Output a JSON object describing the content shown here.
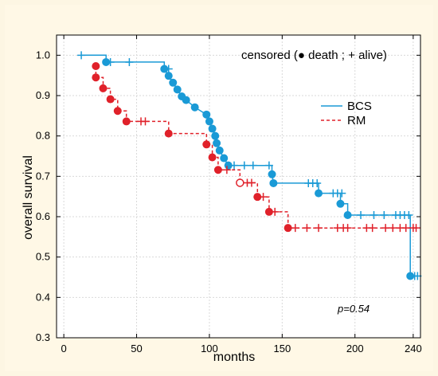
{
  "chart_data": {
    "type": "line",
    "title": "",
    "xlabel": "months",
    "ylabel": "overall survival",
    "xlim": [
      -5,
      245
    ],
    "ylim": [
      0.3,
      1.05
    ],
    "xticks": [
      0,
      50,
      100,
      150,
      200,
      240
    ],
    "yticks": [
      0.3,
      0.4,
      0.5,
      0.6,
      0.7,
      0.8,
      0.9,
      1.0
    ],
    "xtick_labels": [
      "0",
      "50",
      "100",
      "150",
      "200",
      "240"
    ],
    "ytick_labels": [
      "0.3",
      "0.4",
      "0.5",
      "0.6",
      "0.7",
      "0.8",
      "0.9",
      "1.0"
    ],
    "grid": true,
    "annotation_censored": "censored (● death ; + alive)",
    "annotation_p": "p=0.54",
    "legend_placement": "upper-right",
    "series": [
      {
        "name": "BCS",
        "color": "#1a9ad6",
        "line_style": "solid",
        "step": [
          [
            12,
            1.0
          ],
          [
            29,
            1.0
          ],
          [
            29,
            0.983
          ],
          [
            69,
            0.983
          ],
          [
            69,
            0.966
          ],
          [
            72,
            0.949
          ],
          [
            75,
            0.932
          ],
          [
            78,
            0.915
          ],
          [
            81,
            0.898
          ],
          [
            84,
            0.889
          ],
          [
            90,
            0.871
          ],
          [
            98,
            0.853
          ],
          [
            100,
            0.836
          ],
          [
            102,
            0.818
          ],
          [
            104,
            0.8
          ],
          [
            105,
            0.782
          ],
          [
            107,
            0.764
          ],
          [
            110,
            0.745
          ],
          [
            113,
            0.727
          ],
          [
            143,
            0.727
          ],
          [
            143,
            0.705
          ],
          [
            144,
            0.683
          ],
          [
            175,
            0.683
          ],
          [
            175,
            0.658
          ],
          [
            190,
            0.658
          ],
          [
            190,
            0.632
          ],
          [
            195,
            0.632
          ],
          [
            195,
            0.604
          ],
          [
            238,
            0.604
          ],
          [
            238,
            0.453
          ],
          [
            243,
            0.453
          ]
        ],
        "deaths": [
          [
            29,
            0.983
          ],
          [
            69,
            0.966
          ],
          [
            72,
            0.949
          ],
          [
            75,
            0.932
          ],
          [
            78,
            0.915
          ],
          [
            81,
            0.898
          ],
          [
            84,
            0.889
          ],
          [
            90,
            0.871
          ],
          [
            98,
            0.853
          ],
          [
            100,
            0.836
          ],
          [
            102,
            0.818
          ],
          [
            104,
            0.8
          ],
          [
            105,
            0.782
          ],
          [
            107,
            0.764
          ],
          [
            110,
            0.745
          ],
          [
            113,
            0.727
          ],
          [
            143,
            0.705
          ],
          [
            144,
            0.683
          ],
          [
            175,
            0.658
          ],
          [
            190,
            0.632
          ],
          [
            195,
            0.604
          ],
          [
            238,
            0.453
          ]
        ],
        "censored": [
          [
            12,
            1.0
          ],
          [
            32,
            0.983
          ],
          [
            45,
            0.983
          ],
          [
            72,
            0.966
          ],
          [
            117,
            0.727
          ],
          [
            124,
            0.727
          ],
          [
            130,
            0.727
          ],
          [
            141,
            0.727
          ],
          [
            168,
            0.683
          ],
          [
            171,
            0.683
          ],
          [
            174,
            0.683
          ],
          [
            185,
            0.658
          ],
          [
            188,
            0.658
          ],
          [
            191,
            0.658
          ],
          [
            204,
            0.604
          ],
          [
            213,
            0.604
          ],
          [
            220,
            0.604
          ],
          [
            228,
            0.604
          ],
          [
            231,
            0.604
          ],
          [
            234,
            0.604
          ],
          [
            237,
            0.604
          ],
          [
            241,
            0.453
          ],
          [
            243,
            0.453
          ]
        ]
      },
      {
        "name": "RM",
        "color": "#e0212a",
        "line_style": "dashed",
        "step": [
          [
            22,
            0.973
          ],
          [
            22,
            0.945
          ],
          [
            27,
            0.945
          ],
          [
            27,
            0.918
          ],
          [
            32,
            0.918
          ],
          [
            32,
            0.891
          ],
          [
            37,
            0.891
          ],
          [
            37,
            0.862
          ],
          [
            43,
            0.862
          ],
          [
            43,
            0.836
          ],
          [
            72,
            0.836
          ],
          [
            72,
            0.806
          ],
          [
            98,
            0.806
          ],
          [
            98,
            0.779
          ],
          [
            102,
            0.779
          ],
          [
            102,
            0.747
          ],
          [
            106,
            0.747
          ],
          [
            106,
            0.716
          ],
          [
            121,
            0.716
          ],
          [
            121,
            0.684
          ],
          [
            133,
            0.684
          ],
          [
            133,
            0.649
          ],
          [
            141,
            0.649
          ],
          [
            141,
            0.612
          ],
          [
            154,
            0.612
          ],
          [
            154,
            0.572
          ],
          [
            243,
            0.572
          ]
        ],
        "deaths": [
          [
            22,
            0.973
          ],
          [
            22,
            0.945
          ],
          [
            27,
            0.918
          ],
          [
            32,
            0.891
          ],
          [
            37,
            0.862
          ],
          [
            43,
            0.836
          ],
          [
            72,
            0.806
          ],
          [
            98,
            0.779
          ],
          [
            102,
            0.747
          ],
          [
            106,
            0.716
          ],
          [
            133,
            0.649
          ],
          [
            141,
            0.612
          ],
          [
            154,
            0.572
          ]
        ],
        "censored": [
          [
            53,
            0.836
          ],
          [
            56,
            0.836
          ],
          [
            112,
            0.716
          ],
          [
            126,
            0.684
          ],
          [
            129,
            0.684
          ],
          [
            137,
            0.649
          ],
          [
            145,
            0.612
          ],
          [
            159,
            0.572
          ],
          [
            167,
            0.572
          ],
          [
            175,
            0.572
          ],
          [
            188,
            0.572
          ],
          [
            192,
            0.572
          ],
          [
            195,
            0.572
          ],
          [
            208,
            0.572
          ],
          [
            212,
            0.572
          ],
          [
            221,
            0.572
          ],
          [
            226,
            0.572
          ],
          [
            231,
            0.572
          ],
          [
            235,
            0.572
          ],
          [
            240,
            0.572
          ],
          [
            242,
            0.572
          ]
        ],
        "open_circle": [
          [
            121,
            0.684
          ]
        ]
      }
    ]
  }
}
